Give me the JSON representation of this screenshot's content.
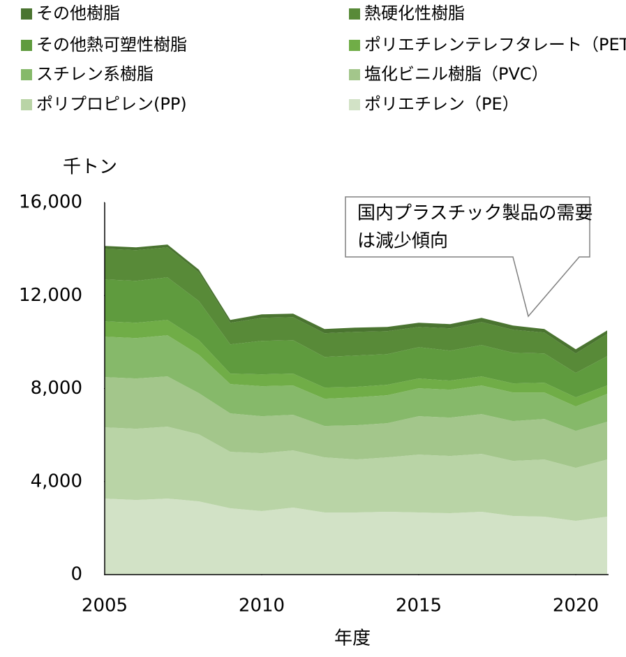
{
  "chart_data": {
    "type": "stacked_area",
    "ylabel": "千トン",
    "xlabel": "年度",
    "annotation": [
      "国内プラスチック製品の需要",
      "は減少傾向"
    ],
    "x": [
      2005,
      2006,
      2007,
      2008,
      2009,
      2010,
      2011,
      2012,
      2013,
      2014,
      2015,
      2016,
      2017,
      2018,
      2019,
      2020,
      2021
    ],
    "xlim": [
      2005,
      2021
    ],
    "xticks": [
      2005,
      2010,
      2015,
      2020
    ],
    "ylim": [
      0,
      16000
    ],
    "yticks": [
      0,
      {
        "value": 4000,
        "label": "4,000"
      },
      {
        "value": 8000,
        "label": "8,000"
      },
      {
        "value": 12000,
        "label": "12,000"
      },
      {
        "value": 16000,
        "label": "16,000"
      }
    ],
    "series": [
      {
        "name": "ポリエチレン（PE）",
        "color": "#d2e2c6",
        "values": [
          3270,
          3210,
          3270,
          3150,
          2850,
          2730,
          2880,
          2670,
          2670,
          2700,
          2670,
          2640,
          2700,
          2520,
          2490,
          2310,
          2490
        ]
      },
      {
        "name": "ポリプロピレン(PP)",
        "color": "#b9d4a6",
        "values": [
          3060,
          3060,
          3090,
          2880,
          2430,
          2490,
          2460,
          2370,
          2280,
          2340,
          2490,
          2460,
          2490,
          2370,
          2460,
          2280,
          2460
        ]
      },
      {
        "name": "塩化ビニル樹脂（PVC）",
        "color": "#a3c68b",
        "values": [
          2160,
          2160,
          2160,
          1770,
          1650,
          1590,
          1530,
          1350,
          1470,
          1470,
          1650,
          1650,
          1710,
          1710,
          1740,
          1590,
          1620
        ]
      },
      {
        "name": "スチレン系樹脂",
        "color": "#86b96a",
        "values": [
          1740,
          1740,
          1770,
          1650,
          1260,
          1290,
          1260,
          1170,
          1200,
          1200,
          1200,
          1200,
          1230,
          1230,
          1140,
          1050,
          1200
        ]
      },
      {
        "name": "ポリエチレンテレフタレート（PET）",
        "color": "#70ad47",
        "values": [
          660,
          660,
          660,
          630,
          450,
          510,
          510,
          480,
          450,
          450,
          420,
          390,
          390,
          390,
          420,
          390,
          360
        ]
      },
      {
        "name": "その他熱可塑性樹脂",
        "color": "#5f9b3e",
        "values": [
          1800,
          1800,
          1830,
          1680,
          1260,
          1440,
          1440,
          1320,
          1350,
          1320,
          1350,
          1290,
          1350,
          1320,
          1260,
          1050,
          1260
        ]
      },
      {
        "name": "熱硬化性樹脂",
        "color": "#588a38",
        "values": [
          1320,
          1320,
          1290,
          1230,
          930,
          990,
          990,
          1020,
          1020,
          990,
          870,
          960,
          990,
          990,
          900,
          840,
          960
        ]
      },
      {
        "name": "その他樹脂",
        "color": "#4a7430",
        "values": [
          120,
          120,
          120,
          120,
          120,
          150,
          150,
          180,
          180,
          180,
          180,
          180,
          180,
          180,
          150,
          180,
          150
        ]
      }
    ]
  }
}
